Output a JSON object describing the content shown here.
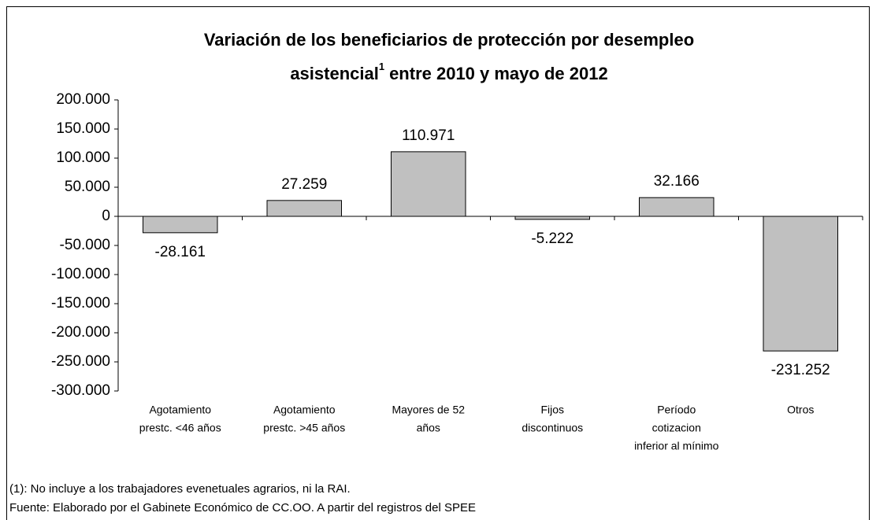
{
  "chart_data": {
    "type": "bar",
    "title": {
      "line1": "Variación de los beneficiarios de protección por desempleo",
      "line2": "asistencial",
      "superscript": "1",
      "line2_end": "entre 2010 y mayo de 2012"
    },
    "categories": [
      [
        "Agotamiento",
        "prestc. <46 años"
      ],
      [
        "Agotamiento",
        "prestc. >45 años"
      ],
      [
        "Mayores de 52",
        "años"
      ],
      [
        "Fijos",
        "discontinuos"
      ],
      [
        "Período",
        "cotizacion",
        "inferior al mínimo"
      ],
      [
        "Otros"
      ]
    ],
    "values": [
      -28161,
      27259,
      110971,
      -5222,
      32166,
      -231252
    ],
    "value_labels": [
      "-28.161",
      "27.259",
      "110.971",
      "-5.222",
      "32.166",
      "-231.252"
    ],
    "color": "#c0c0c0",
    "ylim": [
      -300000,
      200000
    ],
    "yticks": [
      {
        "value": -300000,
        "label": "-300.000"
      },
      {
        "value": -250000,
        "label": "-250.000"
      },
      {
        "value": -200000,
        "label": "-200.000"
      },
      {
        "value": -150000,
        "label": "-150.000"
      },
      {
        "value": -100000,
        "label": "-100.000"
      },
      {
        "value": -50000,
        "label": "-50.000"
      },
      0,
      {
        "value": 50000,
        "label": "50.000"
      },
      {
        "value": 100000,
        "label": "100.000"
      },
      {
        "value": 150000,
        "label": "150.000"
      },
      {
        "value": 200000,
        "label": "200.000"
      }
    ],
    "grid": false,
    "notes": [
      "(1): No incluye a los trabajadores evenetuales agrarios, ni la RAI.",
      "Fuente: Elaborado por el Gabinete Económico de CC.OO. A partir del registros del SPEE"
    ]
  }
}
